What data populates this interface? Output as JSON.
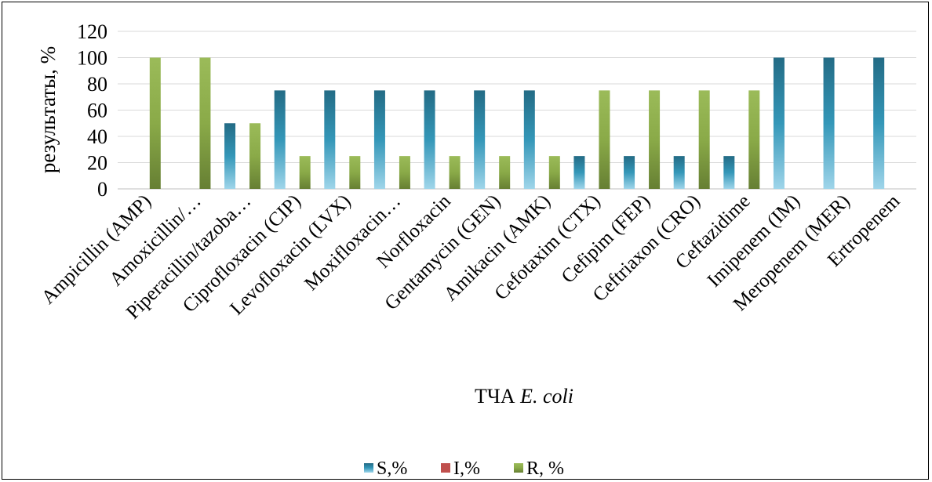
{
  "chart_data": {
    "type": "bar",
    "title": "",
    "xlabel_prefix": "ТЧА ",
    "xlabel_italic": "E. coli",
    "ylabel": "результаты, %",
    "ylim": [
      0,
      120
    ],
    "yticks": [
      "0",
      "20",
      "40",
      "60",
      "80",
      "100",
      "120"
    ],
    "grid": true,
    "legend_position": "bottom",
    "categories": [
      "Ampicillin (AMP)",
      "Amoxicillin/…",
      "Piperacillin/tazoba…",
      "Ciprofloxacin (CIP)",
      "Levofloxacin (LVX)",
      "Moxifloxacin…",
      "Norfloxacin",
      "Gentamycin (GEN)",
      "Amikacin (AMK)",
      "Cefotaxim (CTX)",
      "Cefipim (FEP)",
      "Ceftriaxon (CRO)",
      "Ceftazidime",
      "Imipenem (IM)",
      "Meropenem (MER)",
      "Ertropenem"
    ],
    "series": [
      {
        "name": "S,%",
        "color": "#2e86a6",
        "values": [
          0,
          0,
          50,
          75,
          75,
          75,
          75,
          75,
          75,
          25,
          25,
          25,
          25,
          100,
          100,
          100
        ]
      },
      {
        "name": "I,%",
        "color": "#c0504d",
        "values": [
          0,
          0,
          0,
          0,
          0,
          0,
          0,
          0,
          0,
          0,
          0,
          0,
          0,
          0,
          0,
          0
        ]
      },
      {
        "name": "R, %",
        "color": "#77933c",
        "values": [
          100,
          100,
          50,
          25,
          25,
          25,
          25,
          25,
          25,
          75,
          75,
          75,
          75,
          0,
          0,
          0
        ]
      }
    ]
  }
}
